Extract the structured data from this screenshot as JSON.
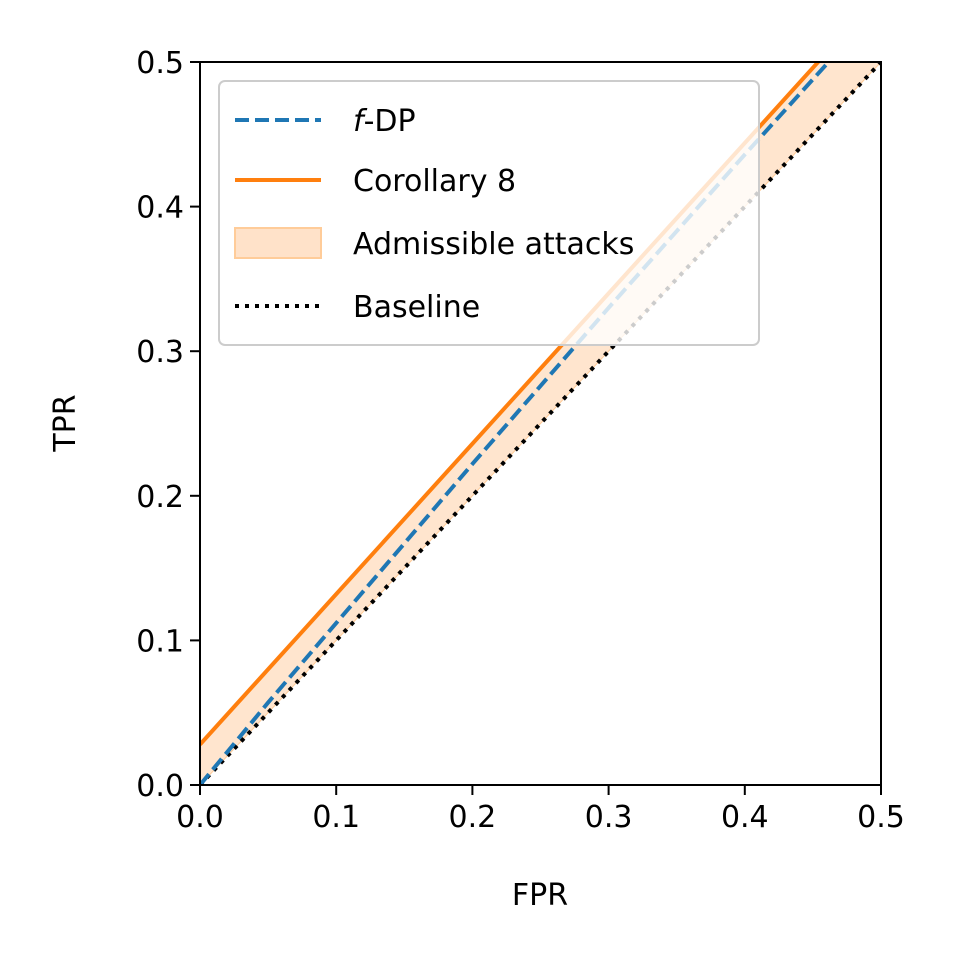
{
  "chart_data": {
    "type": "line",
    "xlabel": "FPR",
    "ylabel": "TPR",
    "xlim": [
      0.0,
      0.5
    ],
    "ylim": [
      0.0,
      0.5
    ],
    "xticks": [
      "0.0",
      "0.1",
      "0.2",
      "0.3",
      "0.4",
      "0.5"
    ],
    "yticks": [
      "0.0",
      "0.1",
      "0.2",
      "0.3",
      "0.4",
      "0.5"
    ],
    "legend_position": "top-left",
    "series": [
      {
        "name": "f-DP",
        "name_prefix": "f",
        "name_suffix": "-DP",
        "style": "dashed",
        "color": "#1f77b4",
        "x": [
          0.0,
          0.05,
          0.1,
          0.15,
          0.2,
          0.25,
          0.3,
          0.35,
          0.4,
          0.45,
          0.5
        ],
        "y": [
          0.0,
          0.057,
          0.112,
          0.167,
          0.222,
          0.276,
          0.33,
          0.383,
          0.436,
          0.488,
          0.54
        ]
      },
      {
        "name": "Corollary 8",
        "style": "solid",
        "color": "#ff7f0e",
        "x": [
          0.0,
          0.1,
          0.2,
          0.3,
          0.4,
          0.5
        ],
        "y": [
          0.028,
          0.132,
          0.236,
          0.34,
          0.444,
          0.548
        ]
      },
      {
        "name": "Admissible attacks",
        "style": "fill",
        "color": "#ffe2c9",
        "edge_color": "#ffcc99",
        "x": [
          0.0,
          0.1,
          0.2,
          0.3,
          0.4,
          0.5
        ],
        "y_upper": [
          0.028,
          0.132,
          0.236,
          0.34,
          0.444,
          0.548
        ],
        "y_lower": [
          0.0,
          0.1,
          0.2,
          0.3,
          0.4,
          0.5
        ]
      },
      {
        "name": "Baseline",
        "style": "dotted",
        "color": "#000000",
        "x": [
          0.0,
          0.5
        ],
        "y": [
          0.0,
          0.5
        ]
      }
    ]
  }
}
